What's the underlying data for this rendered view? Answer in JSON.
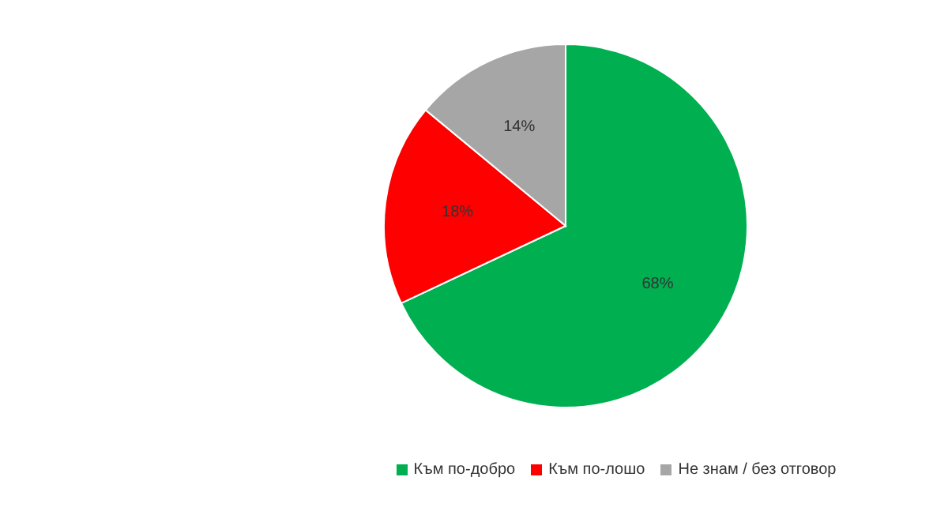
{
  "chart_data": {
    "type": "pie",
    "categories": [
      "Към по-добро",
      "Към по-лошо",
      "Не знам / без отговор"
    ],
    "values": [
      68,
      18,
      14
    ],
    "colors": [
      "#00b050",
      "#ff0000",
      "#a6a6a6"
    ],
    "value_labels": [
      "68%",
      "18%",
      "14%"
    ],
    "legend": "bottom"
  }
}
